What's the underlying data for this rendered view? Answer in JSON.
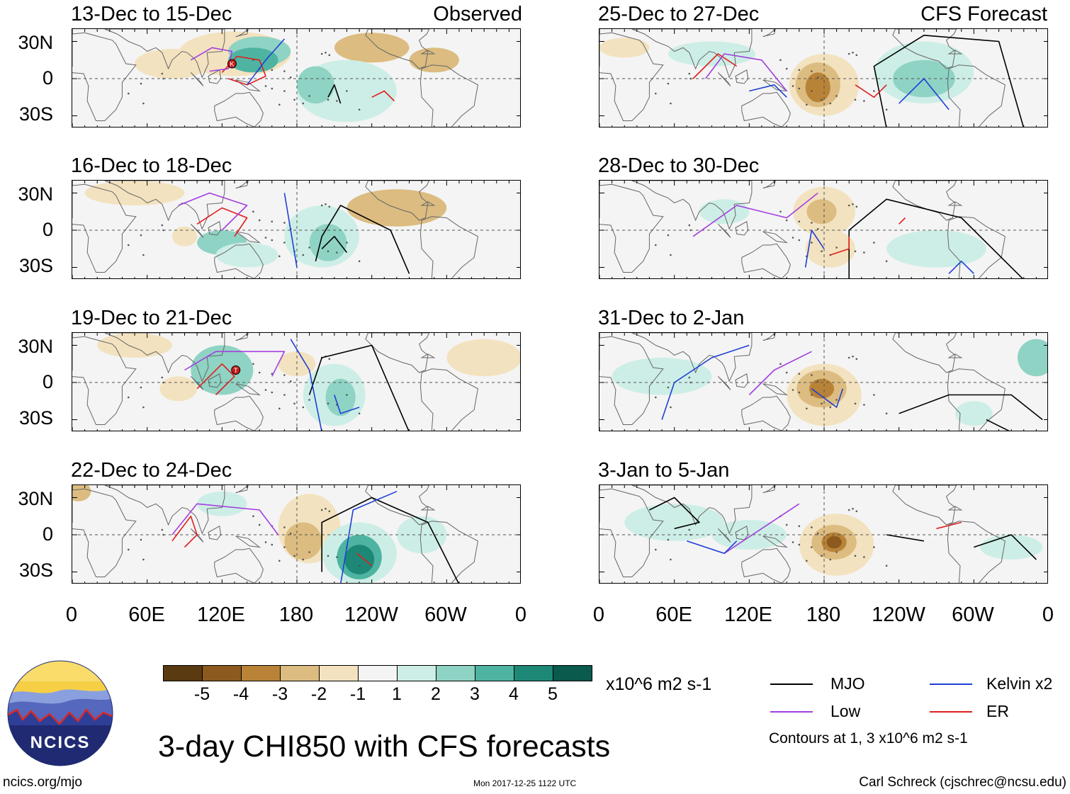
{
  "left_panels": [
    {
      "title": "13-Dec to 15-Dec",
      "tag": "Observed"
    },
    {
      "title": "16-Dec to 18-Dec",
      "tag": ""
    },
    {
      "title": "19-Dec to 21-Dec",
      "tag": ""
    },
    {
      "title": "22-Dec to 24-Dec",
      "tag": ""
    }
  ],
  "right_panels": [
    {
      "title": "25-Dec to 27-Dec",
      "tag": "CFS Forecast"
    },
    {
      "title": "28-Dec to 30-Dec",
      "tag": ""
    },
    {
      "title": "31-Dec to 2-Jan",
      "tag": ""
    },
    {
      "title": "3-Jan to 5-Jan",
      "tag": ""
    }
  ],
  "lat_labels": [
    "30N",
    "0",
    "30S"
  ],
  "lon_labels": [
    "0",
    "60E",
    "120E",
    "180",
    "120W",
    "60W",
    "0"
  ],
  "markers": {
    "kelvin_symbol": "K",
    "tropical_symbol": "T"
  },
  "colorbar": {
    "colors": [
      "#5a3a10",
      "#8c5a1e",
      "#b98337",
      "#dcbc80",
      "#f3e2bf",
      "#f4f4f4",
      "#cdeee6",
      "#8fd3c4",
      "#4eb4a1",
      "#1e8877",
      "#0a5a4e"
    ],
    "labels": [
      "-5",
      "-4",
      "-3",
      "-2",
      "-1",
      "1",
      "2",
      "3",
      "4",
      "5"
    ],
    "units": "x10^6 m2 s-1"
  },
  "legend": {
    "items": [
      {
        "label": "MJO",
        "color": "#000000"
      },
      {
        "label": "Kelvin x2",
        "color": "#1f3fd6"
      },
      {
        "label": "Low",
        "color": "#a33ee0"
      },
      {
        "label": "ER",
        "color": "#e01e1e"
      }
    ],
    "note": "Contours at 1, 3 x10^6 m2 s-1"
  },
  "logo_text": "NCICS",
  "main_title": "3-day CHI850 with CFS forecasts",
  "footer": {
    "left": "ncics.org/mjo",
    "center": "Mon 2017-12-25 1122 UTC",
    "right": "Carl Schreck (cjschrec@ncsu.edu)"
  }
}
